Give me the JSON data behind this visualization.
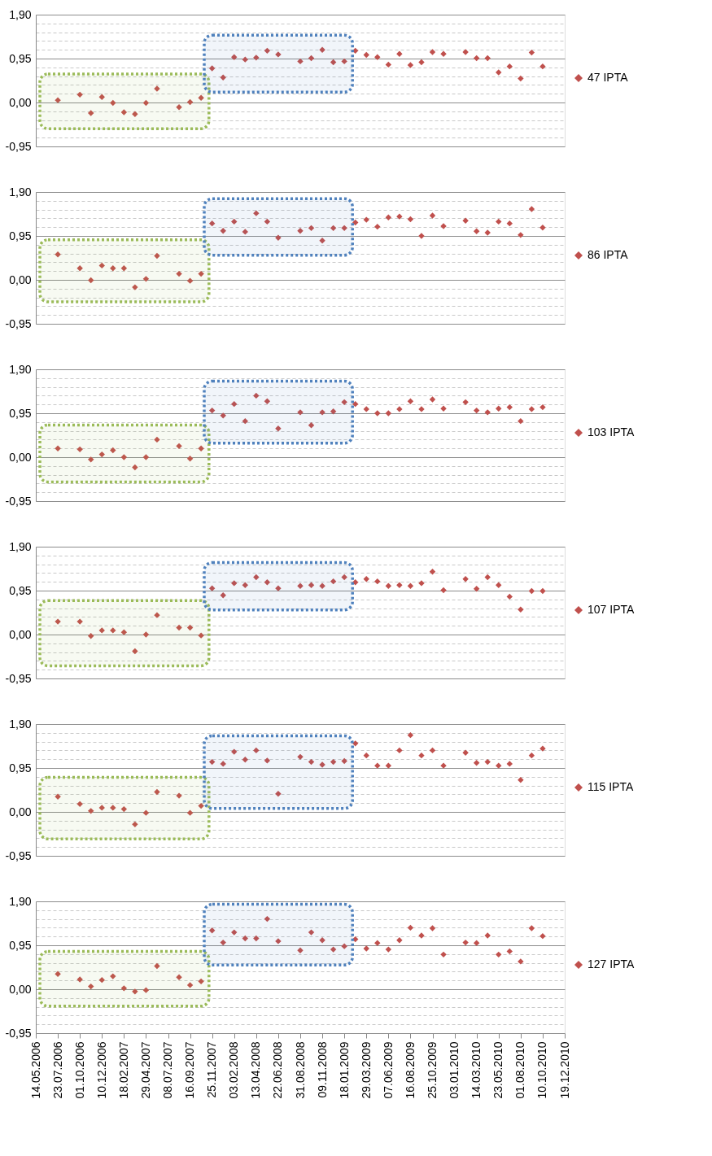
{
  "chart_data": [
    {
      "type": "scatter",
      "marker": "diamond",
      "grid": "y",
      "legend": "right",
      "tick_labels": "y",
      "x": [
        "2006-07-23",
        "2006-08-27",
        "2006-10-01",
        "2006-11-05",
        "2006-12-10",
        "2007-01-14",
        "2007-02-18",
        "2007-03-25",
        "2007-04-29",
        "2007-06-03",
        "2007-07-08",
        "2007-08-12",
        "2007-09-16",
        "2007-10-21",
        "2007-11-25",
        "2007-12-30",
        "2008-02-03",
        "2008-03-09",
        "2008-04-13",
        "2008-05-18",
        "2008-06-22",
        "2008-07-27",
        "2008-08-31",
        "2008-10-05",
        "2008-11-09",
        "2008-12-14",
        "2009-01-18",
        "2009-02-22",
        "2009-03-29",
        "2009-05-03",
        "2009-06-07",
        "2009-07-12",
        "2009-08-16",
        "2009-09-20",
        "2009-10-25",
        "2009-11-29",
        "2010-01-03",
        "2010-02-07",
        "2010-03-14",
        "2010-04-18",
        "2010-05-23",
        "2010-06-27",
        "2010-08-01",
        "2010-09-05",
        "2010-10-10"
      ],
      "series": [
        {
          "name": "47 IPTA",
          "color": "#c0504d",
          "values": [
            0.05,
            null,
            0.17,
            -0.23,
            0.12,
            -0.01,
            -0.21,
            -0.25,
            -0.01,
            0.3,
            null,
            -0.1,
            0.01,
            0.1,
            0.74,
            0.54,
            0.98,
            0.93,
            0.97,
            1.12,
            1.04,
            null,
            0.89,
            0.96,
            1.14,
            0.87,
            0.89,
            1.12,
            1.03,
            0.98,
            0.82,
            1.05,
            0.81,
            0.87,
            1.09,
            1.05,
            null,
            1.09,
            0.96,
            0.96,
            0.65,
            0.78,
            0.52,
            1.08,
            0.78
          ]
        }
      ],
      "bands": [
        {
          "axis": "x",
          "from": "2006-05-27",
          "to": "2007-11-15",
          "color": "#9bbb59"
        },
        {
          "axis": "x",
          "from": "2007-10-31",
          "to": "2009-02-13",
          "color": "#4f81bd"
        }
      ],
      "xlim": [
        "2006-05-14",
        "2010-12-19"
      ],
      "ylim": [
        -0.95,
        1.9
      ],
      "yticks": [
        {
          "value": -0.95,
          "label": "-0,95"
        },
        {
          "value": -0.76,
          "label": null
        },
        {
          "value": -0.57,
          "label": null
        },
        {
          "value": -0.38,
          "label": null
        },
        {
          "value": -0.19,
          "label": null
        },
        {
          "value": 0,
          "label": "0,00"
        },
        {
          "value": 0.19,
          "label": null
        },
        {
          "value": 0.38,
          "label": null
        },
        {
          "value": 0.57,
          "label": null
        },
        {
          "value": 0.76,
          "label": null
        },
        {
          "value": 0.95,
          "label": "0,95"
        },
        {
          "value": 1.14,
          "label": null
        },
        {
          "value": 1.33,
          "label": null
        },
        {
          "value": 1.52,
          "label": null
        },
        {
          "value": 1.71,
          "label": null
        },
        {
          "value": 1.9,
          "label": "1,90"
        }
      ]
    },
    {
      "type": "scatter",
      "marker": "diamond",
      "grid": "y",
      "legend": "right",
      "tick_labels": "y",
      "x": [
        "2006-07-23",
        "2006-08-27",
        "2006-10-01",
        "2006-11-05",
        "2006-12-10",
        "2007-01-14",
        "2007-02-18",
        "2007-03-25",
        "2007-04-29",
        "2007-06-03",
        "2007-07-08",
        "2007-08-12",
        "2007-09-16",
        "2007-10-21",
        "2007-11-25",
        "2007-12-30",
        "2008-02-03",
        "2008-03-09",
        "2008-04-13",
        "2008-05-18",
        "2008-06-22",
        "2008-07-27",
        "2008-08-31",
        "2008-10-05",
        "2008-11-09",
        "2008-12-14",
        "2009-01-18",
        "2009-02-22",
        "2009-03-29",
        "2009-05-03",
        "2009-06-07",
        "2009-07-12",
        "2009-08-16",
        "2009-09-20",
        "2009-10-25",
        "2009-11-29",
        "2010-01-03",
        "2010-02-07",
        "2010-03-14",
        "2010-04-18",
        "2010-05-23",
        "2010-06-27",
        "2010-08-01",
        "2010-09-05",
        "2010-10-10"
      ],
      "series": [
        {
          "name": "86 IPTA",
          "color": "#c0504d",
          "values": [
            0.55,
            null,
            0.25,
            -0.01,
            0.31,
            0.25,
            0.25,
            -0.16,
            0.02,
            0.52,
            null,
            0.13,
            -0.02,
            0.13,
            1.22,
            1.06,
            1.26,
            1.04,
            1.44,
            1.26,
            0.91,
            null,
            1.06,
            1.12,
            0.85,
            1.12,
            1.12,
            1.24,
            1.3,
            1.15,
            1.35,
            1.37,
            1.31,
            0.95,
            1.39,
            1.16,
            null,
            1.28,
            1.05,
            1.02,
            1.26,
            1.22,
            0.97,
            1.53,
            1.13
          ]
        }
      ],
      "bands": [
        {
          "axis": "x",
          "from": "2006-05-27",
          "to": "2007-11-15",
          "color": "#9bbb59"
        },
        {
          "axis": "x",
          "from": "2007-10-31",
          "to": "2009-02-13",
          "color": "#4f81bd"
        }
      ],
      "xlim": [
        "2006-05-14",
        "2010-12-19"
      ],
      "ylim": [
        -0.95,
        1.9
      ],
      "yticks": [
        {
          "value": -0.95,
          "label": "-0,95"
        },
        {
          "value": -0.76,
          "label": null
        },
        {
          "value": -0.57,
          "label": null
        },
        {
          "value": -0.38,
          "label": null
        },
        {
          "value": -0.19,
          "label": null
        },
        {
          "value": 0,
          "label": "0,00"
        },
        {
          "value": 0.19,
          "label": null
        },
        {
          "value": 0.38,
          "label": null
        },
        {
          "value": 0.57,
          "label": null
        },
        {
          "value": 0.76,
          "label": null
        },
        {
          "value": 0.95,
          "label": "0,95"
        },
        {
          "value": 1.14,
          "label": null
        },
        {
          "value": 1.33,
          "label": null
        },
        {
          "value": 1.52,
          "label": null
        },
        {
          "value": 1.71,
          "label": null
        },
        {
          "value": 1.9,
          "label": "1,90"
        }
      ]
    },
    {
      "type": "scatter",
      "marker": "diamond",
      "grid": "y",
      "legend": "right",
      "tick_labels": "y",
      "x": [
        "2006-07-23",
        "2006-08-27",
        "2006-10-01",
        "2006-11-05",
        "2006-12-10",
        "2007-01-14",
        "2007-02-18",
        "2007-03-25",
        "2007-04-29",
        "2007-06-03",
        "2007-07-08",
        "2007-08-12",
        "2007-09-16",
        "2007-10-21",
        "2007-11-25",
        "2007-12-30",
        "2008-02-03",
        "2008-03-09",
        "2008-04-13",
        "2008-05-18",
        "2008-06-22",
        "2008-07-27",
        "2008-08-31",
        "2008-10-05",
        "2008-11-09",
        "2008-12-14",
        "2009-01-18",
        "2009-02-22",
        "2009-03-29",
        "2009-05-03",
        "2009-06-07",
        "2009-07-12",
        "2009-08-16",
        "2009-09-20",
        "2009-10-25",
        "2009-11-29",
        "2010-01-03",
        "2010-02-07",
        "2010-03-14",
        "2010-04-18",
        "2010-05-23",
        "2010-06-27",
        "2010-08-01",
        "2010-09-05",
        "2010-10-10"
      ],
      "series": [
        {
          "name": "103 IPTA",
          "color": "#c0504d",
          "values": [
            0.19,
            null,
            0.17,
            -0.05,
            0.06,
            0.15,
            0.0,
            -0.22,
            0.0,
            0.38,
            null,
            0.24,
            -0.03,
            0.19,
            1.01,
            0.9,
            1.15,
            0.78,
            1.33,
            1.21,
            0.62,
            null,
            0.97,
            0.69,
            0.97,
            0.99,
            1.19,
            1.15,
            1.04,
            0.95,
            0.95,
            1.04,
            1.21,
            1.04,
            1.25,
            1.05,
            null,
            1.19,
            1.01,
            0.97,
            1.05,
            1.08,
            0.78,
            1.04,
            1.08
          ]
        }
      ],
      "bands": [
        {
          "axis": "x",
          "from": "2006-05-27",
          "to": "2007-11-15",
          "color": "#9bbb59"
        },
        {
          "axis": "x",
          "from": "2007-10-31",
          "to": "2009-02-13",
          "color": "#4f81bd"
        }
      ],
      "xlim": [
        "2006-05-14",
        "2010-12-19"
      ],
      "ylim": [
        -0.95,
        1.9
      ],
      "yticks": [
        {
          "value": -0.95,
          "label": "-0,95"
        },
        {
          "value": -0.76,
          "label": null
        },
        {
          "value": -0.57,
          "label": null
        },
        {
          "value": -0.38,
          "label": null
        },
        {
          "value": -0.19,
          "label": null
        },
        {
          "value": 0,
          "label": "0,00"
        },
        {
          "value": 0.19,
          "label": null
        },
        {
          "value": 0.38,
          "label": null
        },
        {
          "value": 0.57,
          "label": null
        },
        {
          "value": 0.76,
          "label": null
        },
        {
          "value": 0.95,
          "label": "0,95"
        },
        {
          "value": 1.14,
          "label": null
        },
        {
          "value": 1.33,
          "label": null
        },
        {
          "value": 1.52,
          "label": null
        },
        {
          "value": 1.71,
          "label": null
        },
        {
          "value": 1.9,
          "label": "1,90"
        }
      ]
    },
    {
      "type": "scatter",
      "marker": "diamond",
      "grid": "y",
      "legend": "right",
      "tick_labels": "y",
      "x": [
        "2006-07-23",
        "2006-08-27",
        "2006-10-01",
        "2006-11-05",
        "2006-12-10",
        "2007-01-14",
        "2007-02-18",
        "2007-03-25",
        "2007-04-29",
        "2007-06-03",
        "2007-07-08",
        "2007-08-12",
        "2007-09-16",
        "2007-10-21",
        "2007-11-25",
        "2007-12-30",
        "2008-02-03",
        "2008-03-09",
        "2008-04-13",
        "2008-05-18",
        "2008-06-22",
        "2008-07-27",
        "2008-08-31",
        "2008-10-05",
        "2008-11-09",
        "2008-12-14",
        "2009-01-18",
        "2009-02-22",
        "2009-03-29",
        "2009-05-03",
        "2009-06-07",
        "2009-07-12",
        "2009-08-16",
        "2009-09-20",
        "2009-10-25",
        "2009-11-29",
        "2010-01-03",
        "2010-02-07",
        "2010-03-14",
        "2010-04-18",
        "2010-05-23",
        "2010-06-27",
        "2010-08-01",
        "2010-09-05",
        "2010-10-10"
      ],
      "series": [
        {
          "name": "107 IPTA",
          "color": "#c0504d",
          "values": [
            0.28,
            null,
            0.28,
            -0.03,
            0.09,
            0.09,
            0.05,
            -0.36,
            0.0,
            0.42,
            null,
            0.15,
            0.15,
            -0.02,
            1.0,
            0.85,
            1.11,
            1.07,
            1.24,
            1.13,
            1.0,
            null,
            1.05,
            1.07,
            1.05,
            1.15,
            1.24,
            1.13,
            1.2,
            1.15,
            1.05,
            1.07,
            1.05,
            1.11,
            1.36,
            0.96,
            null,
            1.2,
            0.99,
            1.24,
            1.07,
            0.82,
            0.54,
            0.94,
            0.94
          ]
        }
      ],
      "bands": [
        {
          "axis": "x",
          "from": "2006-05-27",
          "to": "2007-11-15",
          "color": "#9bbb59"
        },
        {
          "axis": "x",
          "from": "2007-10-31",
          "to": "2009-02-13",
          "color": "#4f81bd"
        }
      ],
      "xlim": [
        "2006-05-14",
        "2010-12-19"
      ],
      "ylim": [
        -0.95,
        1.9
      ],
      "yticks": [
        {
          "value": -0.95,
          "label": "-0,95"
        },
        {
          "value": -0.76,
          "label": null
        },
        {
          "value": -0.57,
          "label": null
        },
        {
          "value": -0.38,
          "label": null
        },
        {
          "value": -0.19,
          "label": null
        },
        {
          "value": 0,
          "label": "0,00"
        },
        {
          "value": 0.19,
          "label": null
        },
        {
          "value": 0.38,
          "label": null
        },
        {
          "value": 0.57,
          "label": null
        },
        {
          "value": 0.76,
          "label": null
        },
        {
          "value": 0.95,
          "label": "0,95"
        },
        {
          "value": 1.14,
          "label": null
        },
        {
          "value": 1.33,
          "label": null
        },
        {
          "value": 1.52,
          "label": null
        },
        {
          "value": 1.71,
          "label": null
        },
        {
          "value": 1.9,
          "label": "1,90"
        }
      ]
    },
    {
      "type": "scatter",
      "marker": "diamond",
      "grid": "y",
      "legend": "right",
      "tick_labels": "y",
      "x": [
        "2006-07-23",
        "2006-08-27",
        "2006-10-01",
        "2006-11-05",
        "2006-12-10",
        "2007-01-14",
        "2007-02-18",
        "2007-03-25",
        "2007-04-29",
        "2007-06-03",
        "2007-07-08",
        "2007-08-12",
        "2007-09-16",
        "2007-10-21",
        "2007-11-25",
        "2007-12-30",
        "2008-02-03",
        "2008-03-09",
        "2008-04-13",
        "2008-05-18",
        "2008-06-22",
        "2008-07-27",
        "2008-08-31",
        "2008-10-05",
        "2008-11-09",
        "2008-12-14",
        "2009-01-18",
        "2009-02-22",
        "2009-03-29",
        "2009-05-03",
        "2009-06-07",
        "2009-07-12",
        "2009-08-16",
        "2009-09-20",
        "2009-10-25",
        "2009-11-29",
        "2010-01-03",
        "2010-02-07",
        "2010-03-14",
        "2010-04-18",
        "2010-05-23",
        "2010-06-27",
        "2010-08-01",
        "2010-09-05",
        "2010-10-10"
      ],
      "series": [
        {
          "name": "115 IPTA",
          "color": "#c0504d",
          "values": [
            0.33,
            null,
            0.17,
            0.02,
            0.09,
            0.09,
            0.06,
            -0.27,
            -0.02,
            0.43,
            null,
            0.35,
            -0.02,
            0.13,
            1.08,
            1.04,
            1.3,
            1.13,
            1.33,
            1.11,
            0.39,
            null,
            1.19,
            1.08,
            1.02,
            1.08,
            1.1,
            1.48,
            1.22,
            1.0,
            1.0,
            1.33,
            1.66,
            1.22,
            1.33,
            1.0,
            null,
            1.28,
            1.06,
            1.08,
            1.0,
            1.04,
            0.69,
            1.22,
            1.37
          ]
        }
      ],
      "bands": [
        {
          "axis": "x",
          "from": "2006-05-27",
          "to": "2007-11-15",
          "color": "#9bbb59"
        },
        {
          "axis": "x",
          "from": "2007-10-31",
          "to": "2009-02-13",
          "color": "#4f81bd"
        }
      ],
      "xlim": [
        "2006-05-14",
        "2010-12-19"
      ],
      "ylim": [
        -0.95,
        1.9
      ],
      "yticks": [
        {
          "value": -0.95,
          "label": "-0,95"
        },
        {
          "value": -0.76,
          "label": null
        },
        {
          "value": -0.57,
          "label": null
        },
        {
          "value": -0.38,
          "label": null
        },
        {
          "value": -0.19,
          "label": null
        },
        {
          "value": 0,
          "label": "0,00"
        },
        {
          "value": 0.19,
          "label": null
        },
        {
          "value": 0.38,
          "label": null
        },
        {
          "value": 0.57,
          "label": null
        },
        {
          "value": 0.76,
          "label": null
        },
        {
          "value": 0.95,
          "label": "0,95"
        },
        {
          "value": 1.14,
          "label": null
        },
        {
          "value": 1.33,
          "label": null
        },
        {
          "value": 1.52,
          "label": null
        },
        {
          "value": 1.71,
          "label": null
        },
        {
          "value": 1.9,
          "label": "1,90"
        }
      ]
    },
    {
      "type": "scatter",
      "marker": "diamond",
      "grid": "y",
      "legend": "right",
      "x": [
        "2006-07-23",
        "2006-08-27",
        "2006-10-01",
        "2006-11-05",
        "2006-12-10",
        "2007-01-14",
        "2007-02-18",
        "2007-03-25",
        "2007-04-29",
        "2007-06-03",
        "2007-07-08",
        "2007-08-12",
        "2007-09-16",
        "2007-10-21",
        "2007-11-25",
        "2007-12-30",
        "2008-02-03",
        "2008-03-09",
        "2008-04-13",
        "2008-05-18",
        "2008-06-22",
        "2008-07-27",
        "2008-08-31",
        "2008-10-05",
        "2008-11-09",
        "2008-12-14",
        "2009-01-18",
        "2009-02-22",
        "2009-03-29",
        "2009-05-03",
        "2009-06-07",
        "2009-07-12",
        "2009-08-16",
        "2009-09-20",
        "2009-10-25",
        "2009-11-29",
        "2010-01-03",
        "2010-02-07",
        "2010-03-14",
        "2010-04-18",
        "2010-05-23",
        "2010-06-27",
        "2010-08-01",
        "2010-09-05",
        "2010-10-10"
      ],
      "series": [
        {
          "name": "127 IPTA",
          "color": "#c0504d",
          "values": [
            0.33,
            null,
            0.21,
            0.06,
            0.2,
            0.28,
            0.02,
            -0.05,
            -0.02,
            0.5,
            null,
            0.26,
            0.09,
            0.17,
            1.27,
            1.01,
            1.23,
            1.1,
            1.1,
            1.52,
            1.04,
            null,
            0.84,
            1.23,
            1.06,
            0.86,
            0.93,
            1.08,
            0.88,
            1.0,
            0.86,
            1.06,
            1.33,
            1.16,
            1.32,
            0.75,
            null,
            1.01,
            1.0,
            1.16,
            0.75,
            0.82,
            0.6,
            1.32,
            1.15
          ]
        }
      ],
      "bands": [
        {
          "axis": "x",
          "from": "2006-05-27",
          "to": "2007-11-15",
          "color": "#9bbb59"
        },
        {
          "axis": "x",
          "from": "2007-10-31",
          "to": "2009-02-13",
          "color": "#4f81bd"
        }
      ],
      "xlim": [
        "2006-05-14",
        "2010-12-19"
      ],
      "xticks": [
        {
          "value": "2006-05-14",
          "label": "14.05.2006"
        },
        {
          "value": "2006-07-23",
          "label": "23.07.2006"
        },
        {
          "value": "2006-10-01",
          "label": "01.10.2006"
        },
        {
          "value": "2006-12-10",
          "label": "10.12.2006"
        },
        {
          "value": "2007-02-18",
          "label": "18.02.2007"
        },
        {
          "value": "2007-04-29",
          "label": "29.04.2007"
        },
        {
          "value": "2007-07-08",
          "label": "08.07.2007"
        },
        {
          "value": "2007-09-16",
          "label": "16.09.2007"
        },
        {
          "value": "2007-11-25",
          "label": "25.11.2007"
        },
        {
          "value": "2008-02-03",
          "label": "03.02.2008"
        },
        {
          "value": "2008-04-13",
          "label": "13.04.2008"
        },
        {
          "value": "2008-06-22",
          "label": "22.06.2008"
        },
        {
          "value": "2008-08-31",
          "label": "31.08.2008"
        },
        {
          "value": "2008-11-09",
          "label": "09.11.2008"
        },
        {
          "value": "2009-01-18",
          "label": "18.01.2009"
        },
        {
          "value": "2009-03-29",
          "label": "29.03.2009"
        },
        {
          "value": "2009-06-07",
          "label": "07.06.2009"
        },
        {
          "value": "2009-08-16",
          "label": "16.08.2009"
        },
        {
          "value": "2009-10-25",
          "label": "25.10.2009"
        },
        {
          "value": "2010-01-03",
          "label": "03.01.2010"
        },
        {
          "value": "2010-03-14",
          "label": "14.03.2010"
        },
        {
          "value": "2010-05-23",
          "label": "23.05.2010"
        },
        {
          "value": "2010-08-01",
          "label": "01.08.2010"
        },
        {
          "value": "2010-10-10",
          "label": "10.10.2010"
        },
        {
          "value": "2010-12-19",
          "label": "19.12.2010"
        }
      ],
      "ylim": [
        -0.95,
        1.9
      ],
      "yticks": [
        {
          "value": -0.95,
          "label": "-0,95"
        },
        {
          "value": -0.76,
          "label": null
        },
        {
          "value": -0.57,
          "label": null
        },
        {
          "value": -0.38,
          "label": null
        },
        {
          "value": -0.19,
          "label": null
        },
        {
          "value": 0,
          "label": "0,00"
        },
        {
          "value": 0.19,
          "label": null
        },
        {
          "value": 0.38,
          "label": null
        },
        {
          "value": 0.57,
          "label": null
        },
        {
          "value": 0.76,
          "label": null
        },
        {
          "value": 0.95,
          "label": "0,95"
        },
        {
          "value": 1.14,
          "label": null
        },
        {
          "value": 1.33,
          "label": null
        },
        {
          "value": 1.52,
          "label": null
        },
        {
          "value": 1.71,
          "label": null
        },
        {
          "value": 1.9,
          "label": "1,90"
        }
      ]
    }
  ]
}
